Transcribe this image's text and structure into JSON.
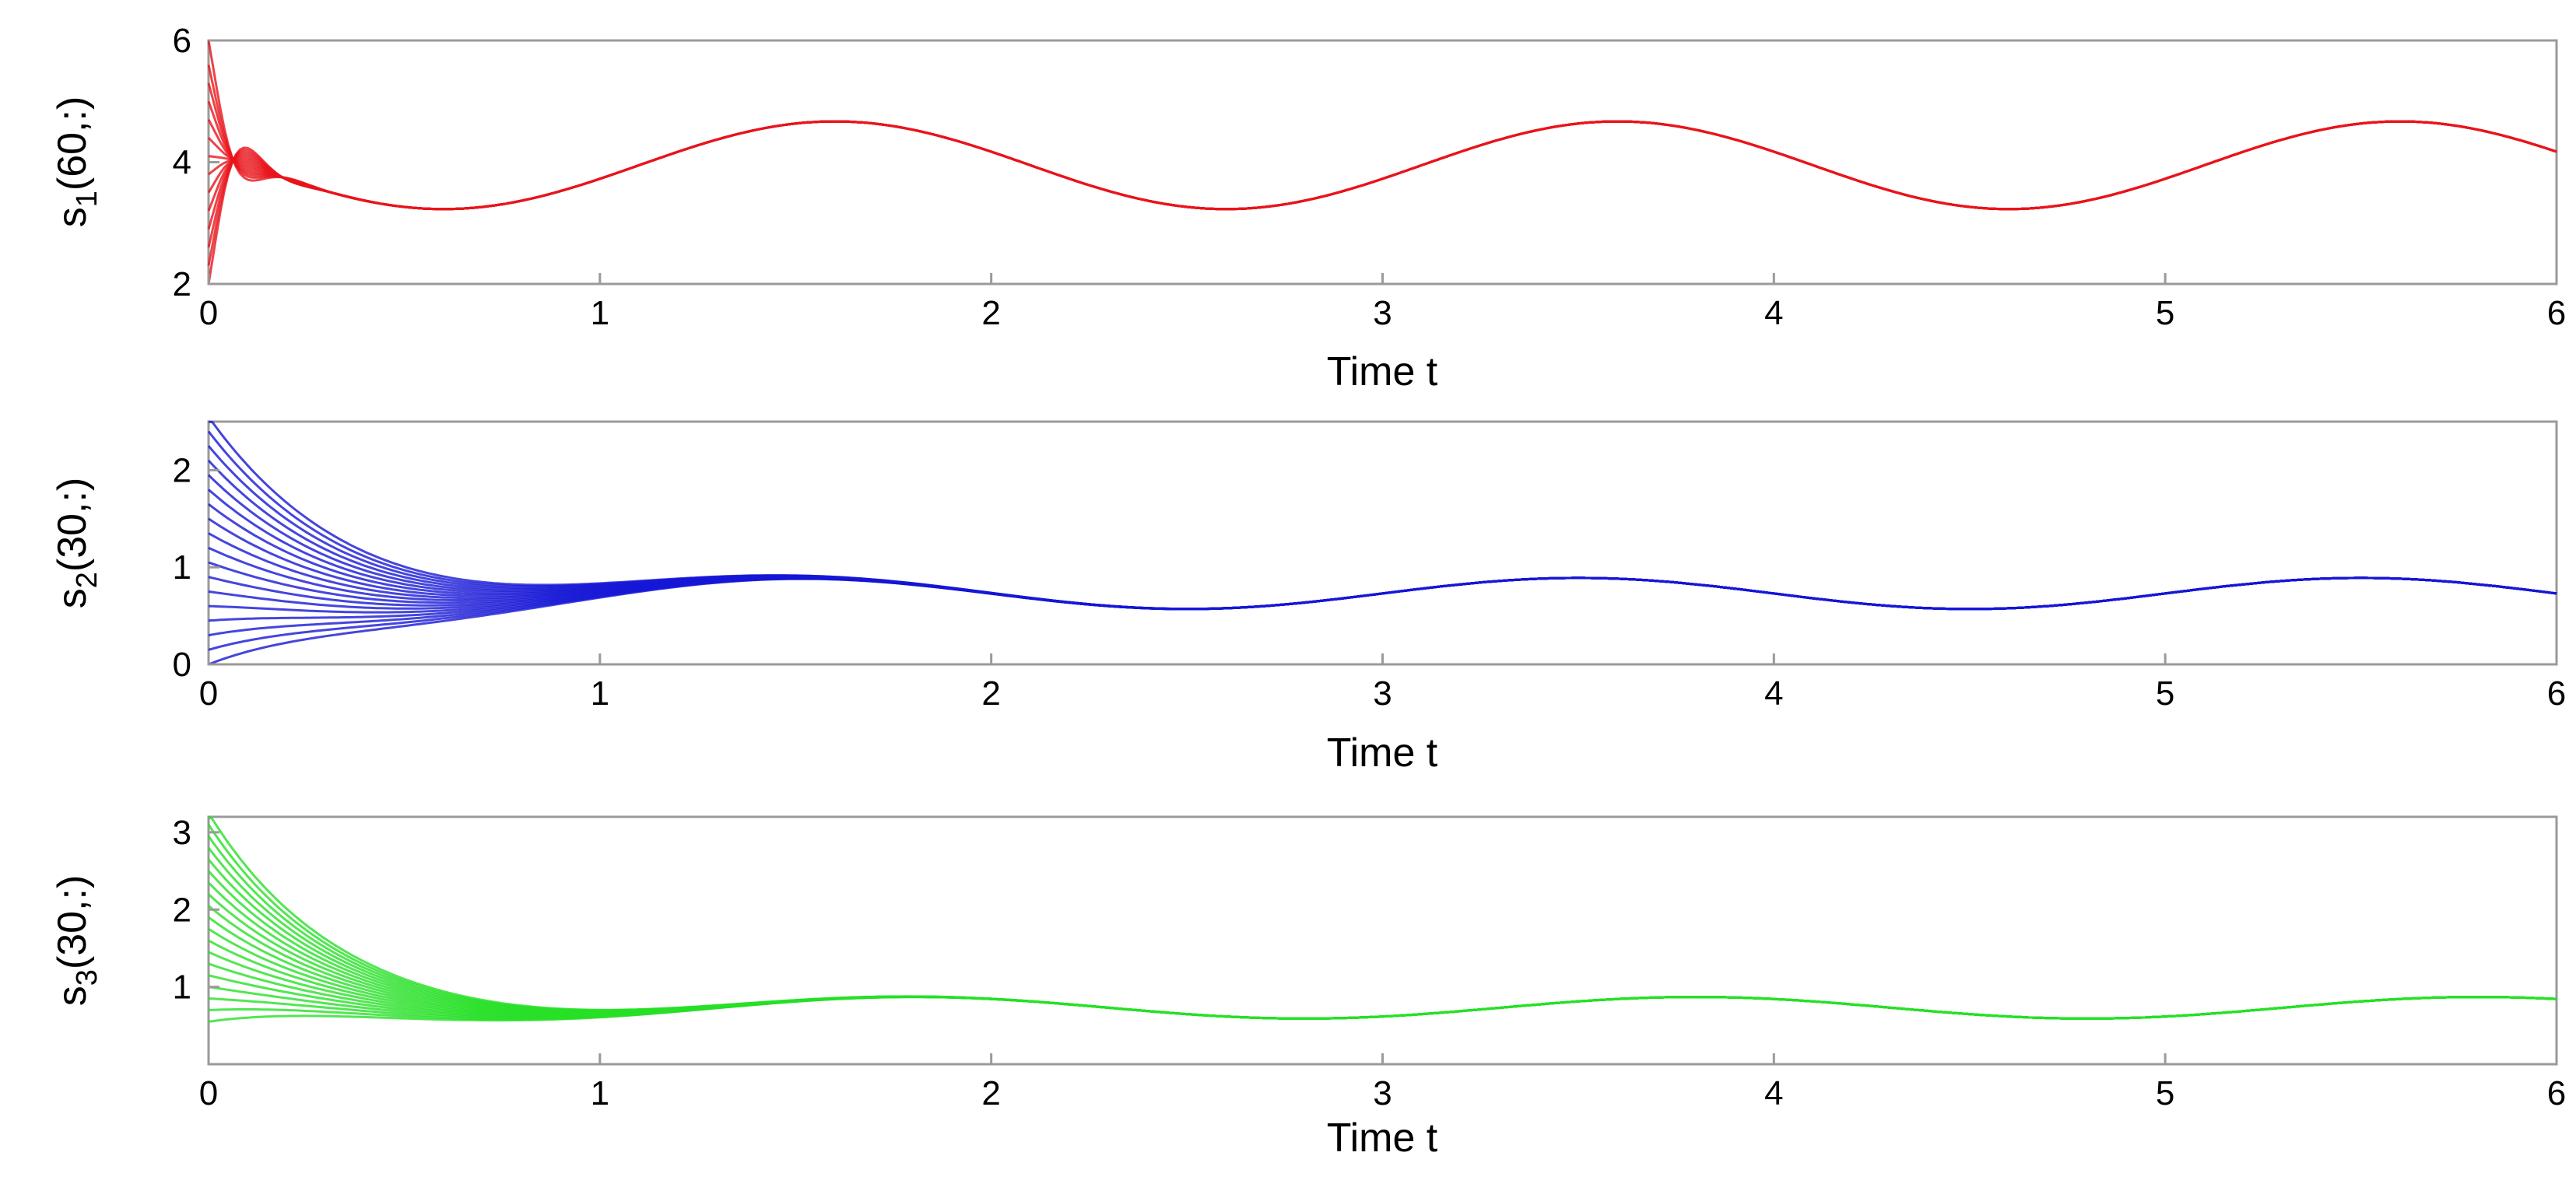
{
  "chart_data": [
    {
      "type": "line",
      "xlabel": "Time t",
      "ylabel_main": "s",
      "ylabel_sub": "1",
      "ylabel_tail": "(60,:)",
      "xlim": [
        0,
        6
      ],
      "ylim": [
        2,
        6
      ],
      "xticks": [
        "0",
        "1",
        "2",
        "3",
        "4",
        "5",
        "6"
      ],
      "yticks": [
        "2",
        "4",
        "6"
      ],
      "color": "#e8141b",
      "grid": false,
      "steady": {
        "mean": 3.95,
        "amplitude": 0.72,
        "period": 2.0,
        "phase_peak_t": 1.6
      },
      "initial_values": [
        2.0,
        2.3,
        2.6,
        2.9,
        3.2,
        3.5,
        3.8,
        4.1,
        4.4,
        4.7,
        5.0,
        5.3,
        5.6,
        6.0
      ],
      "decay_time": 0.055,
      "trough_value": 3.25,
      "trough_t": 0.6
    },
    {
      "type": "line",
      "xlabel": "Time t",
      "ylabel_main": "s",
      "ylabel_sub": "2",
      "ylabel_tail": "(30,:)",
      "xlim": [
        0,
        6
      ],
      "ylim": [
        0,
        2.5
      ],
      "xticks": [
        "0",
        "1",
        "2",
        "3",
        "4",
        "5",
        "6"
      ],
      "yticks": [
        "0",
        "1",
        "2"
      ],
      "color": "#1717d6",
      "grid": false,
      "steady": {
        "mean": 0.73,
        "amplitude": 0.16,
        "period": 2.0,
        "phase_peak_t": 1.5
      },
      "initial_values": [
        0.0,
        0.15,
        0.3,
        0.45,
        0.6,
        0.75,
        0.9,
        1.05,
        1.2,
        1.35,
        1.5,
        1.65,
        1.8,
        1.95,
        2.1,
        2.25,
        2.4,
        2.55
      ],
      "decay_time": 0.35
    },
    {
      "type": "line",
      "xlabel": "Time t",
      "ylabel_main": "s",
      "ylabel_sub": "3",
      "ylabel_tail": "(30,:)",
      "xlim": [
        0,
        6
      ],
      "ylim": [
        0,
        3.2
      ],
      "xticks": [
        "0",
        "1",
        "2",
        "3",
        "4",
        "5",
        "6"
      ],
      "yticks": [
        "1",
        "2",
        "3"
      ],
      "color": "#27e027",
      "grid": false,
      "steady": {
        "mean": 0.73,
        "amplitude": 0.14,
        "period": 2.0,
        "phase_peak_t": 1.8
      },
      "initial_values": [
        0.55,
        0.7,
        0.85,
        1.0,
        1.15,
        1.3,
        1.45,
        1.6,
        1.75,
        1.9,
        2.05,
        2.2,
        2.35,
        2.5,
        2.65,
        2.8,
        2.95,
        3.1,
        3.25
      ],
      "decay_time": 0.3
    }
  ]
}
